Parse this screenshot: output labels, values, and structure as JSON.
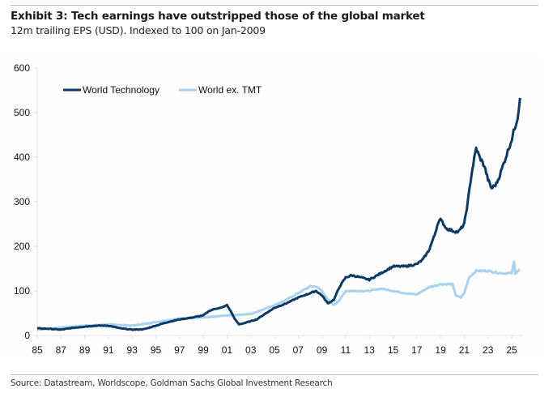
{
  "header": {
    "title": "Exhibit 3: Tech earnings have outstripped those of the global market",
    "subtitle": "12m trailing EPS (USD). Indexed to 100 on Jan-2009"
  },
  "footer": {
    "source": "Source: Datastream, Worldscope, Goldman Sachs Global Investment Research"
  },
  "colors": {
    "world_technology": "#0b3a66",
    "world_ex_tmt": "#a9d2ee"
  },
  "chart_data": {
    "type": "line",
    "title": "Exhibit 3: Tech earnings have outstripped those of the global market",
    "subtitle": "12m trailing EPS (USD). Indexed to 100 on Jan-2009",
    "xlabel": "",
    "ylabel": "",
    "xlim": [
      1985,
      2026
    ],
    "ylim": [
      0,
      600
    ],
    "y_ticks": [
      0,
      100,
      200,
      300,
      400,
      500,
      600
    ],
    "x_ticks": [
      1985,
      1987,
      1989,
      1991,
      1993,
      1995,
      1997,
      1999,
      2001,
      2003,
      2005,
      2007,
      2009,
      2011,
      2013,
      2015,
      2017,
      2019,
      2021,
      2023,
      2025
    ],
    "x_tick_labels": [
      "85",
      "87",
      "89",
      "91",
      "93",
      "95",
      "97",
      "99",
      "01",
      "03",
      "05",
      "07",
      "09",
      "11",
      "13",
      "15",
      "17",
      "19",
      "21",
      "23",
      "25"
    ],
    "grid": false,
    "legend": "top-left",
    "series": [
      {
        "name": "World Technology",
        "x": [
          1985,
          1986,
          1987,
          1988,
          1989,
          1990,
          1991,
          1992,
          1993,
          1994,
          1995,
          1996,
          1997,
          1998,
          1999,
          1999.5,
          2000,
          2000.5,
          2001,
          2001.3,
          2001.7,
          2002,
          2002.5,
          2003,
          2003.5,
          2004,
          2005,
          2006,
          2007,
          2008,
          2008.5,
          2009,
          2009.5,
          2010,
          2010.5,
          2011,
          2011.5,
          2012,
          2013,
          2014,
          2015,
          2016,
          2017,
          2017.5,
          2018,
          2018.5,
          2018.8,
          2019,
          2019.5,
          2020,
          2020.5,
          2021,
          2021.3,
          2021.6,
          2022,
          2022.3,
          2022.7,
          2023,
          2023.3,
          2023.7,
          2024,
          2024.5,
          2025,
          2025.5,
          2025.7
        ],
        "y": [
          16,
          15,
          13,
          17,
          20,
          22,
          22,
          16,
          13,
          14,
          22,
          30,
          36,
          40,
          45,
          55,
          60,
          62,
          68,
          55,
          35,
          25,
          28,
          32,
          36,
          45,
          62,
          72,
          85,
          95,
          100,
          90,
          72,
          80,
          110,
          130,
          135,
          132,
          125,
          140,
          155,
          155,
          160,
          170,
          190,
          225,
          255,
          260,
          240,
          235,
          232,
          250,
          300,
          360,
          420,
          400,
          380,
          350,
          330,
          340,
          360,
          400,
          440,
          490,
          533
        ]
      },
      {
        "name": "World ex. TMT",
        "x": [
          1985,
          1987,
          1989,
          1991,
          1993,
          1995,
          1997,
          1999,
          2001,
          2003,
          2005,
          2006,
          2007,
          2008,
          2008.5,
          2009,
          2009.5,
          2010,
          2010.5,
          2011,
          2012,
          2013,
          2014,
          2015,
          2016,
          2017,
          2018,
          2019,
          2020,
          2020.3,
          2020.7,
          2021,
          2021.4,
          2021.8,
          2022,
          2023,
          2024,
          2025,
          2025.2,
          2025.3,
          2025.7
        ],
        "y": [
          13,
          18,
          22,
          25,
          22,
          30,
          38,
          40,
          45,
          48,
          68,
          80,
          95,
          110,
          110,
          100,
          80,
          68,
          80,
          100,
          100,
          100,
          105,
          100,
          95,
          92,
          108,
          115,
          115,
          90,
          85,
          95,
          130,
          140,
          145,
          145,
          140,
          140,
          165,
          140,
          148
        ]
      }
    ]
  }
}
